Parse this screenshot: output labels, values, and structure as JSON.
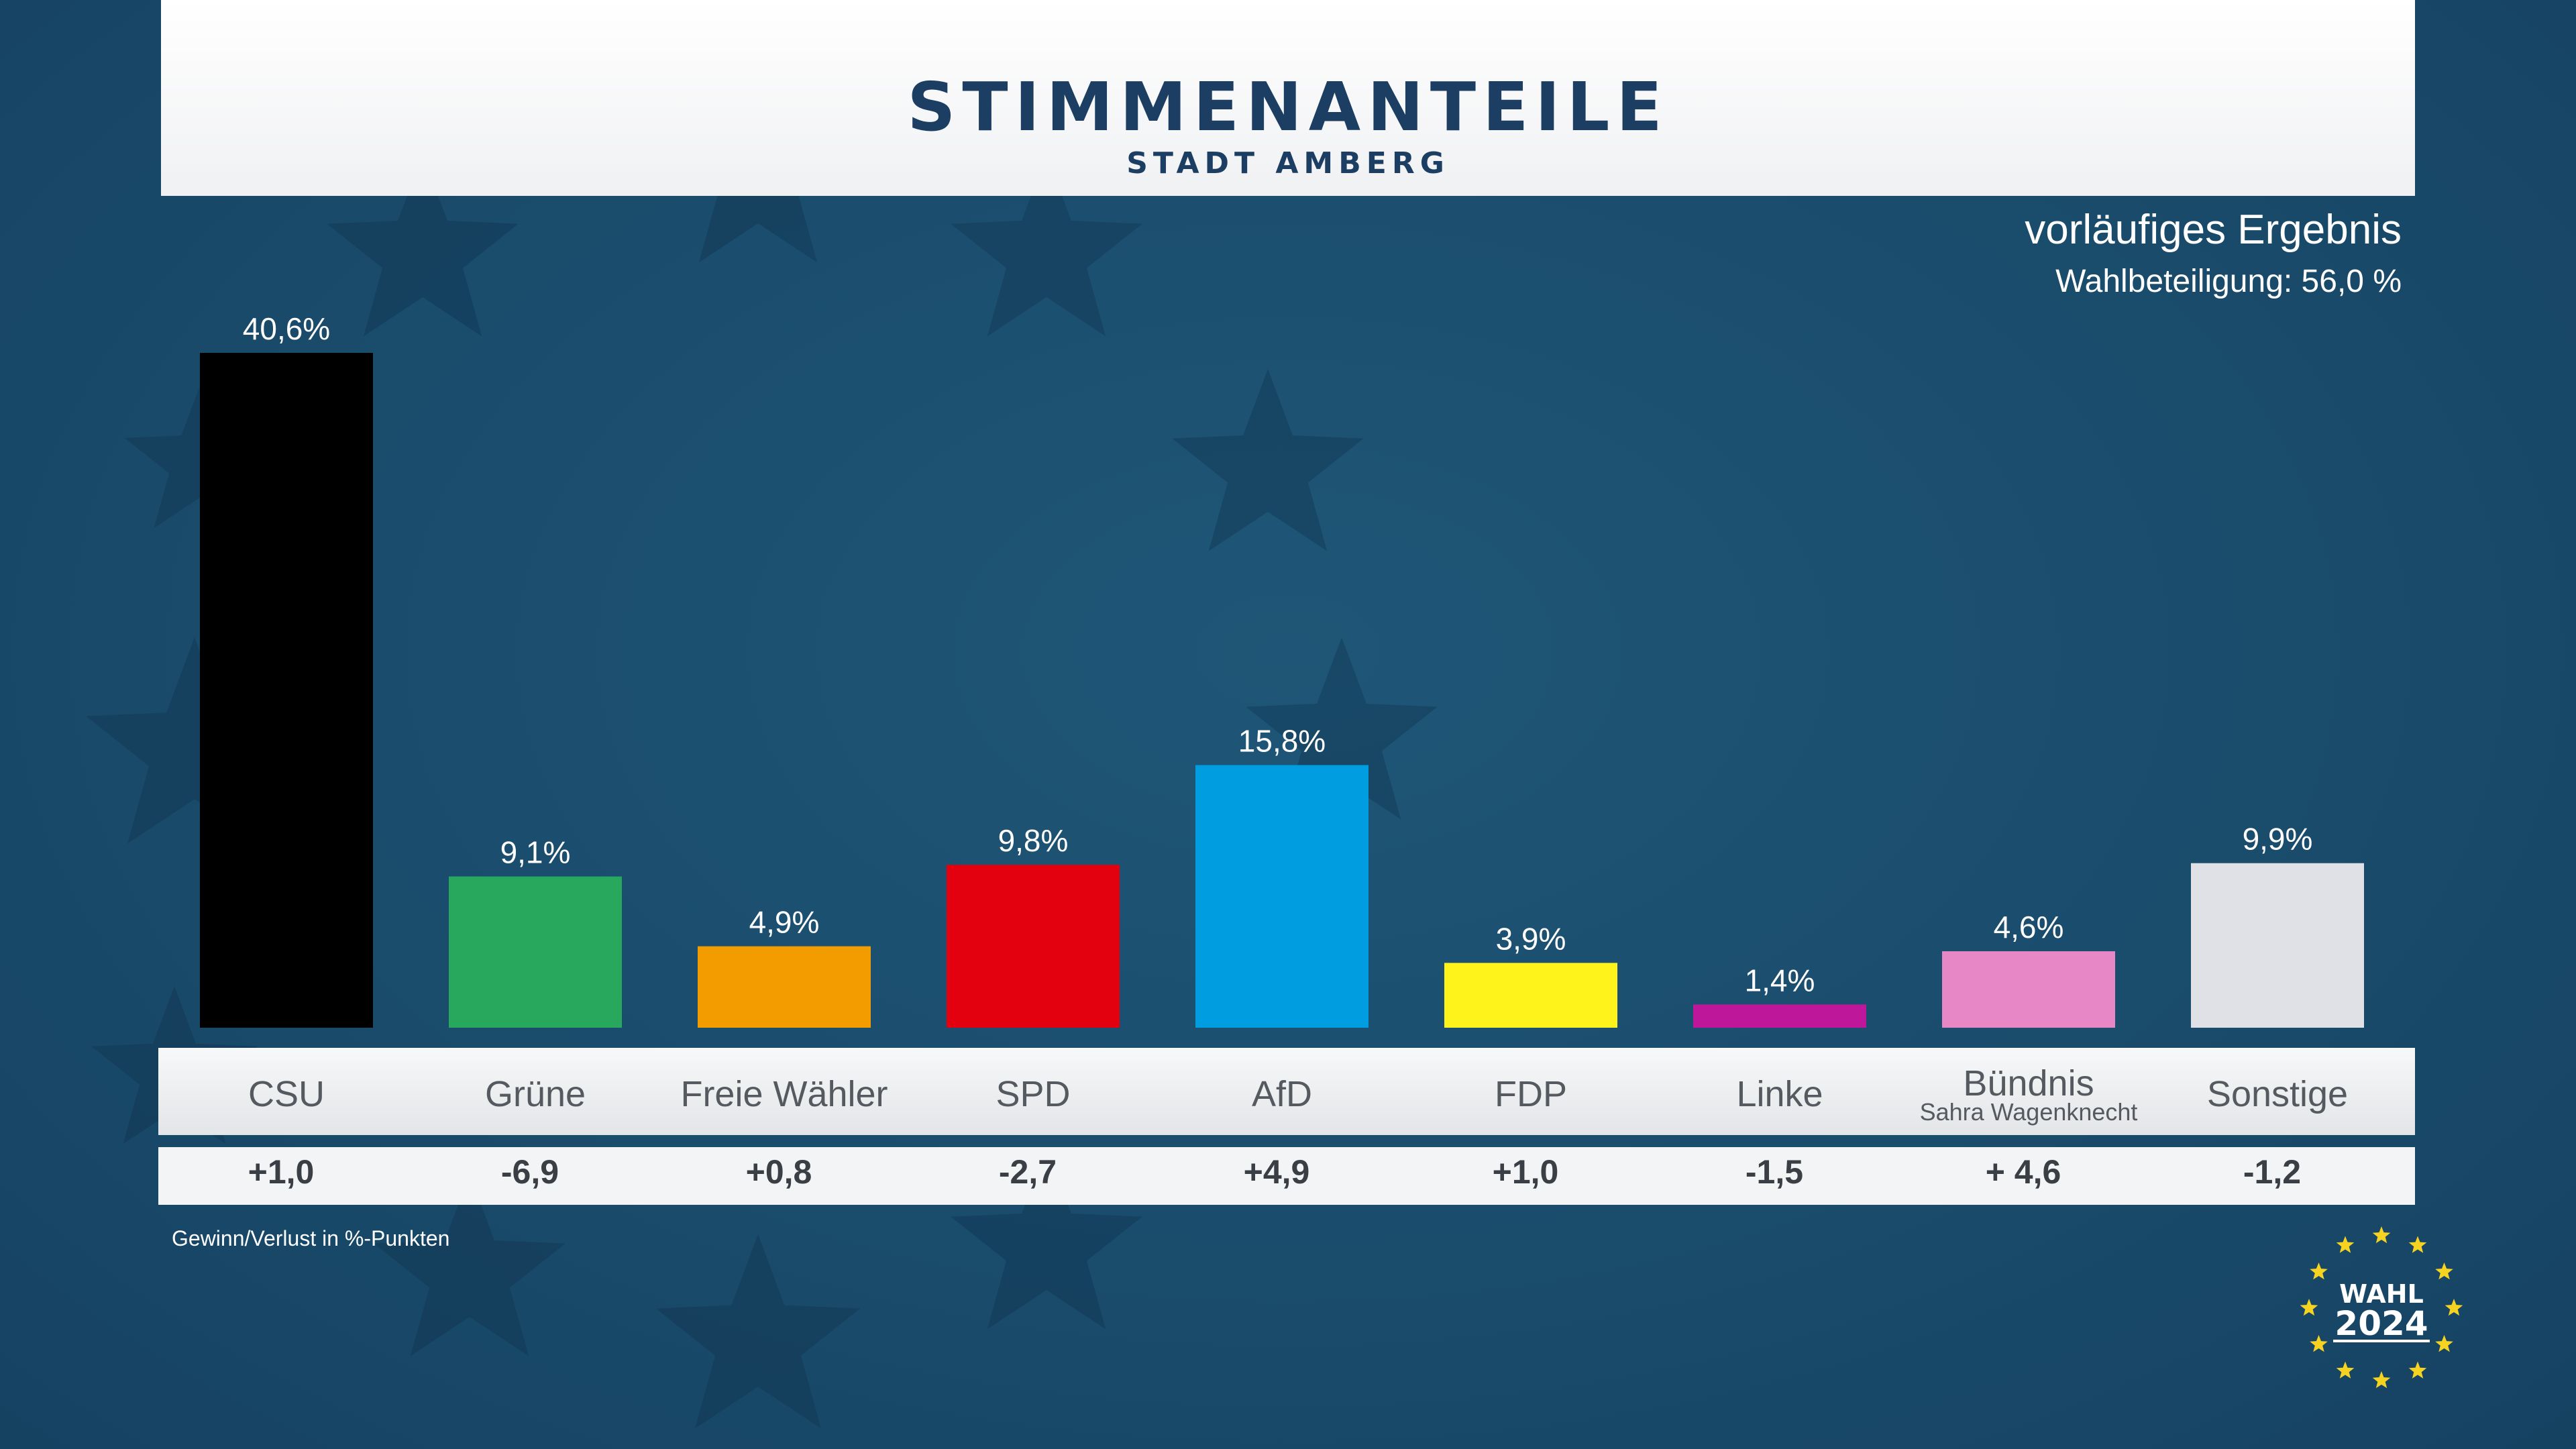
{
  "header": {
    "title": "STIMMENANTEILE",
    "subtitle": "STADT AMBERG"
  },
  "status": "vorläufiges Ergebnis",
  "turnout": "Wahlbeteiligung: 56,0 %",
  "footnote": "Gewinn/Verlust in %-Punkten",
  "logo": {
    "line1": "WAHL",
    "line2": "2024"
  },
  "colors": {
    "background": "#1a4c6c",
    "title": "#1d3e63",
    "logo_star": "#f5d320"
  },
  "chart_data": {
    "type": "bar",
    "title": "STIMMENANTEILE",
    "ylim": [
      0,
      40.6
    ],
    "grid": false,
    "categories": [
      "CSU",
      "Grüne",
      "Freie Wähler",
      "SPD",
      "AfD",
      "FDP",
      "Linke",
      "Bündnis",
      "Sonstige"
    ],
    "category_sublabels": [
      "",
      "",
      "",
      "",
      "",
      "",
      "",
      "Sahra Wagenknecht",
      ""
    ],
    "values": [
      40.6,
      9.1,
      4.9,
      9.8,
      15.8,
      3.9,
      1.4,
      4.6,
      9.9
    ],
    "value_labels": [
      "40,6%",
      "9,1%",
      "4,9%",
      "9,8%",
      "15,8%",
      "3,9%",
      "1,4%",
      "4,6%",
      "9,9%"
    ],
    "changes": [
      1.0,
      -6.9,
      0.8,
      -2.7,
      4.9,
      1.0,
      -1.5,
      4.6,
      -1.2
    ],
    "change_labels": [
      "+1,0",
      "-6,9",
      "+0,8",
      "-2,7",
      "+4,9",
      "+1,0",
      "-1,5",
      "+ 4,6",
      "-1,2"
    ],
    "colors": [
      "#000000",
      "#27a85c",
      "#f39c00",
      "#e3000f",
      "#009ee0",
      "#fff31c",
      "#be1799",
      "#e887c5",
      "#dfe1e6"
    ]
  }
}
